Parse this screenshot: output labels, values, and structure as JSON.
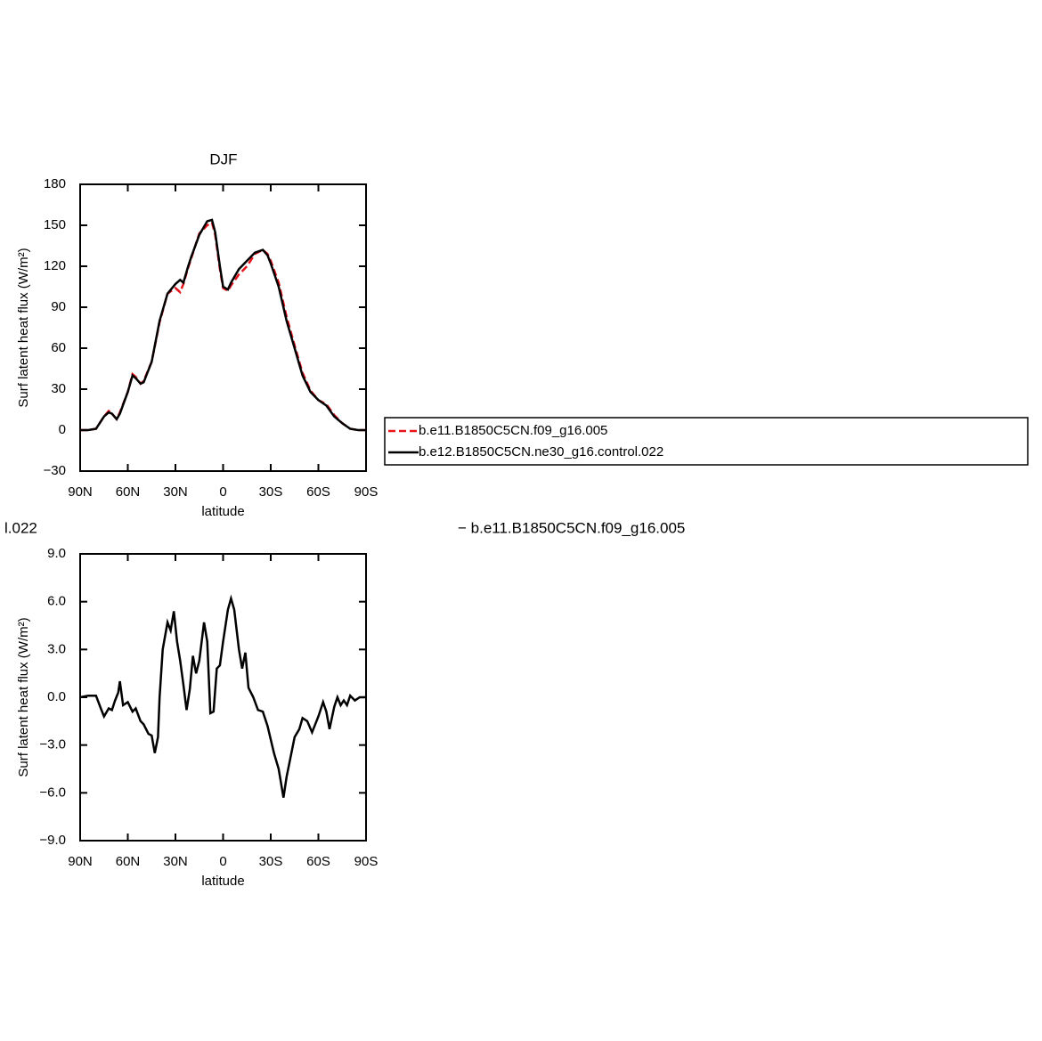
{
  "chart_data": [
    {
      "type": "line",
      "title": "DJF",
      "xlabel": "latitude",
      "ylabel": "Surf latent heat flux (W/m²)",
      "xlim": [
        90,
        -90
      ],
      "xticks": [
        {
          "value": 90,
          "label": "90N"
        },
        {
          "value": 60,
          "label": "60N"
        },
        {
          "value": 30,
          "label": "30N"
        },
        0,
        {
          "value": -30,
          "label": "30S"
        },
        {
          "value": -60,
          "label": "60S"
        },
        {
          "value": -90,
          "label": "90S"
        }
      ],
      "ylim": [
        -30,
        180
      ],
      "yticks": [
        {
          "value": -30,
          "label": "−30"
        },
        0,
        30,
        60,
        90,
        120,
        150,
        180
      ],
      "x": [
        90,
        85,
        80,
        75,
        72,
        70,
        67,
        65,
        60,
        57,
        55,
        52,
        50,
        45,
        40,
        35,
        30,
        27,
        25,
        22,
        20,
        15,
        10,
        7,
        5,
        2,
        0,
        -3,
        -5,
        -10,
        -15,
        -20,
        -25,
        -28,
        -30,
        -35,
        -40,
        -45,
        -50,
        -55,
        -60,
        -65,
        -70,
        -75,
        -80,
        -85,
        -90
      ],
      "series": [
        {
          "name": "b.e11.B1850C5CN.f09_g16.005",
          "color": "#e8141c",
          "dash": true,
          "values": [
            0,
            0,
            1,
            10,
            14,
            12,
            8,
            13,
            28,
            41,
            39,
            34,
            36,
            50,
            79,
            100,
            104,
            101,
            107,
            119,
            126,
            144,
            150,
            152,
            143,
            118,
            104,
            102,
            106,
            114,
            120,
            129,
            132,
            129,
            124,
            108,
            83,
            62,
            42,
            29,
            22,
            19,
            11,
            5,
            1,
            0,
            0
          ]
        },
        {
          "name": "b.e12.B1850C5CN.ne30_g16.control.022",
          "color": "#000000",
          "dash": false,
          "values": [
            0,
            0,
            1,
            10,
            13,
            12,
            8,
            12,
            28,
            40,
            38,
            34,
            35,
            50,
            80,
            100,
            107,
            110,
            108,
            120,
            127,
            143,
            153,
            154,
            145,
            120,
            105,
            103,
            108,
            118,
            124,
            130,
            132,
            128,
            122,
            105,
            80,
            60,
            40,
            28,
            22,
            18,
            10,
            5,
            1,
            0,
            0
          ]
        }
      ]
    },
    {
      "type": "line",
      "title_left": "l.022",
      "title_right": "− b.e11.B1850C5CN.f09_g16.005",
      "xlabel": "latitude",
      "ylabel": "Surf latent heat flux (W/m²)",
      "xlim": [
        90,
        -90
      ],
      "xticks": [
        {
          "value": 90,
          "label": "90N"
        },
        {
          "value": 60,
          "label": "60N"
        },
        {
          "value": 30,
          "label": "30N"
        },
        0,
        {
          "value": -30,
          "label": "30S"
        },
        {
          "value": -60,
          "label": "60S"
        },
        {
          "value": -90,
          "label": "90S"
        }
      ],
      "ylim": [
        -9,
        9
      ],
      "yticks": [
        {
          "value": -9,
          "label": "−9.0"
        },
        {
          "value": -6,
          "label": "−6.0"
        },
        {
          "value": -3,
          "label": "−3.0"
        },
        {
          "value": 0,
          "label": "0.0"
        },
        {
          "value": 3,
          "label": "3.0"
        },
        {
          "value": 6,
          "label": "6.0"
        },
        {
          "value": 9,
          "label": "9.0"
        }
      ],
      "x": [
        90,
        85,
        80,
        77,
        75,
        72,
        70,
        68,
        66,
        65,
        63,
        60,
        57,
        55,
        52,
        50,
        47,
        45,
        43,
        41,
        40,
        38,
        35,
        33,
        31,
        29,
        27,
        25,
        23,
        21,
        19,
        17,
        15,
        12,
        10,
        8,
        6,
        4,
        2,
        0,
        -3,
        -5,
        -7,
        -10,
        -12,
        -14,
        -16,
        -19,
        -22,
        -25,
        -28,
        -32,
        -35,
        -38,
        -40,
        -43,
        -45,
        -48,
        -50,
        -53,
        -56,
        -60,
        -63,
        -65,
        -67,
        -70,
        -72,
        -74,
        -76,
        -78,
        -80,
        -83,
        -86,
        -90
      ],
      "series": [
        {
          "color": "#000000",
          "dash": false,
          "values": [
            0,
            0.1,
            0.1,
            -0.7,
            -1.2,
            -0.7,
            -0.8,
            -0.2,
            0.3,
            1,
            -0.5,
            -0.3,
            -0.9,
            -0.7,
            -1.5,
            -1.7,
            -2.3,
            -2.4,
            -3.5,
            -2.5,
            0,
            3,
            4.7,
            4.2,
            5.4,
            3.5,
            2.3,
            0.8,
            -0.8,
            0.5,
            2.6,
            1.5,
            2.3,
            4.7,
            3.5,
            -1,
            -0.9,
            1.8,
            2,
            3.5,
            5.5,
            6.2,
            5.5,
            3,
            1.8,
            2.8,
            0.6,
            0,
            -0.8,
            -0.9,
            -1.8,
            -3.5,
            -4.5,
            -6.3,
            -5,
            -3.5,
            -2.5,
            -2,
            -1.3,
            -1.5,
            -2.2,
            -1.2,
            -0.3,
            -0.9,
            -2,
            -0.6,
            0,
            -0.5,
            -0.2,
            -0.5,
            0.1,
            -0.2,
            0,
            0
          ]
        }
      ]
    }
  ]
}
